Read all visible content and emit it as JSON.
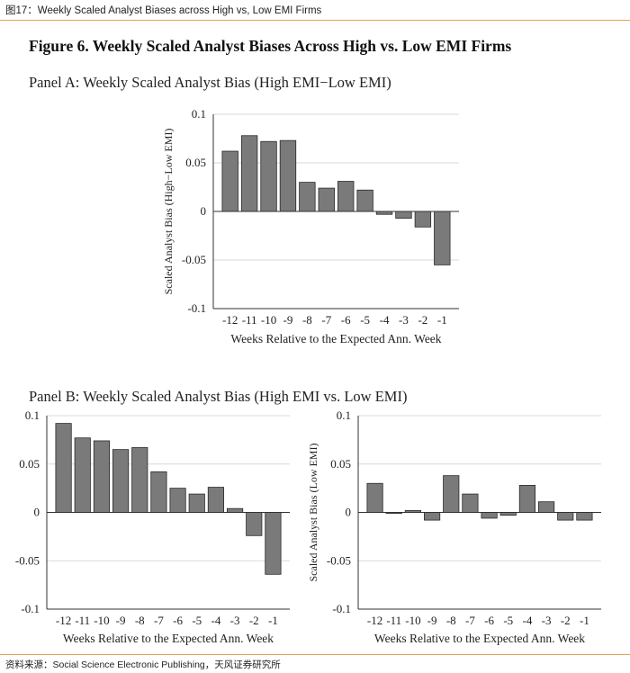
{
  "header": {
    "caption": "图17：Weekly Scaled Analyst Biases across High vs, Low EMI Firms"
  },
  "figure": {
    "title": "Figure 6.  Weekly Scaled Analyst Biases Across High vs. Low EMI Firms",
    "panel_a_title": "Panel A: Weekly Scaled Analyst Bias (High EMI−Low EMI)",
    "panel_b_title": "Panel B: Weekly Scaled Analyst Bias (High EMI vs. Low EMI)"
  },
  "footer": {
    "source": "资料来源：Social Science Electronic Publishing，天风证券研究所"
  },
  "colors": {
    "bar": "#7a7a7a",
    "bar_edge": "#2a2a2a",
    "grid": "#d9d9d9",
    "accent": "#e8a050"
  },
  "chart_data": [
    {
      "id": "panel-a",
      "type": "bar",
      "title": "Panel A: Weekly Scaled Analyst Bias (High EMI−Low EMI)",
      "categories": [
        "-12",
        "-11",
        "-10",
        "-9",
        "-8",
        "-7",
        "-6",
        "-5",
        "-4",
        "-3",
        "-2",
        "-1"
      ],
      "values": [
        0.062,
        0.078,
        0.072,
        0.073,
        0.03,
        0.024,
        0.031,
        0.022,
        -0.003,
        -0.007,
        -0.016,
        -0.055
      ],
      "xlabel": "Weeks Relative to the Expected Ann. Week",
      "ylabel": "Scaled Analyst Bias (High−Low EMI)",
      "ylim": [
        -0.1,
        0.1
      ],
      "yticks": [
        "0.1",
        "0.05",
        "0",
        "-0.05",
        "-0.1"
      ],
      "grid": true
    },
    {
      "id": "panel-b-high",
      "type": "bar",
      "title": "High EMI",
      "categories": [
        "-12",
        "-11",
        "-10",
        "-9",
        "-8",
        "-7",
        "-6",
        "-5",
        "-4",
        "-3",
        "-2",
        "-1"
      ],
      "values": [
        0.092,
        0.077,
        0.074,
        0.065,
        0.067,
        0.042,
        0.025,
        0.019,
        0.026,
        0.004,
        -0.024,
        -0.064
      ],
      "xlabel": "Weeks Relative to the Expected Ann. Week",
      "ylabel": "",
      "ylim": [
        -0.1,
        0.1
      ],
      "yticks": [
        "0.1",
        "0.05",
        "0",
        "-0.05",
        "-0.1"
      ],
      "grid": true
    },
    {
      "id": "panel-b-low",
      "type": "bar",
      "title": "Low EMI",
      "categories": [
        "-12",
        "-11",
        "-10",
        "-9",
        "-8",
        "-7",
        "-6",
        "-5",
        "-4",
        "-3",
        "-2",
        "-1"
      ],
      "values": [
        0.03,
        -0.001,
        0.002,
        -0.008,
        0.038,
        0.019,
        -0.006,
        -0.003,
        0.028,
        0.011,
        -0.008,
        -0.008
      ],
      "xlabel": "Weeks Relative to the Expected Ann. Week",
      "ylabel": "Scaled Analyst Bias (Low EMI)",
      "ylim": [
        -0.1,
        0.1
      ],
      "yticks": [
        "0.1",
        "0.05",
        "0",
        "-0.05",
        "-0.1"
      ],
      "grid": true
    }
  ]
}
